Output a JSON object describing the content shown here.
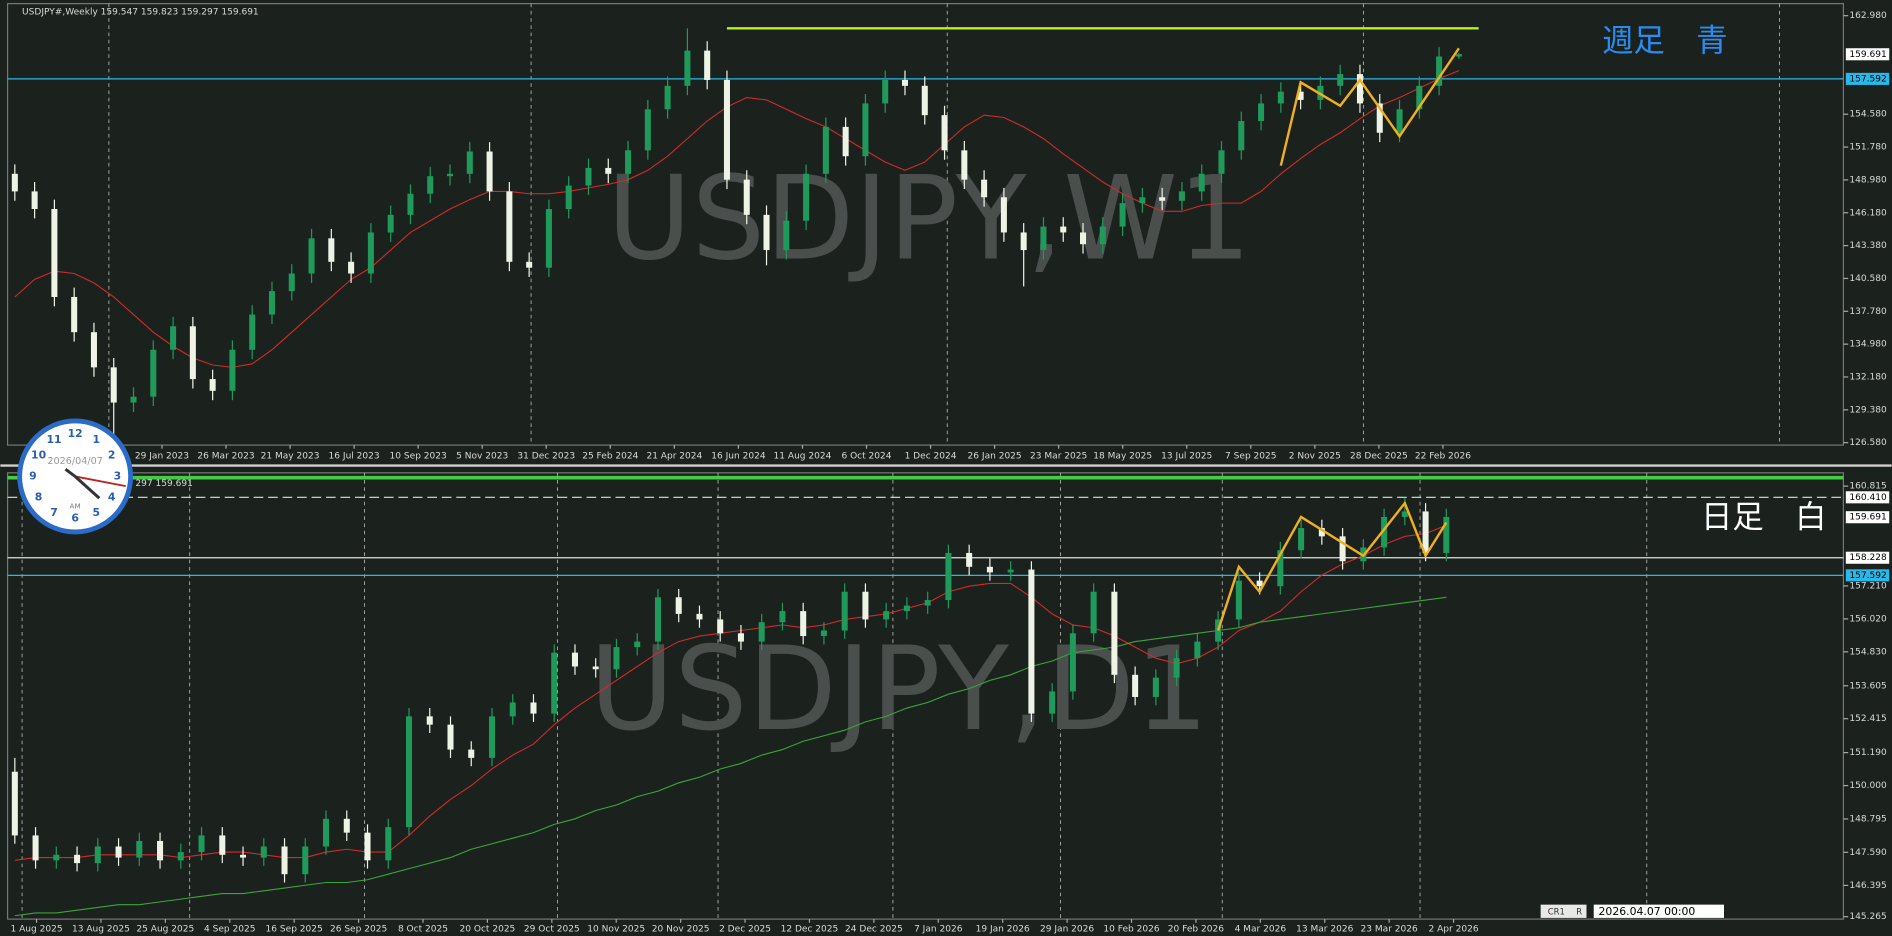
{
  "chart_data": [
    {
      "type": "candlestick",
      "title": "USDJPY#,Weekly  159.547 159.823 159.297 159.691",
      "watermark": "USDJPY,W1",
      "annotation": "週足　青",
      "annotation_color": "#2a8cf0",
      "up_color": "#1f9a5b",
      "down_color": "#eef3e6",
      "x_labels": [
        "29 Jan 2023",
        "26 Mar 2023",
        "21 May 2023",
        "16 Jul 2023",
        "10 Sep 2023",
        "5 Nov 2023",
        "31 Dec 2023",
        "25 Feb 2024",
        "21 Apr 2024",
        "16 Jun 2024",
        "11 Aug 2024",
        "6 Oct 2024",
        "1 Dec 2024",
        "26 Jan 2025",
        "23 Mar 2025",
        "18 May 2025",
        "13 Jul 2025",
        "7 Sep 2025",
        "2 Nov 2025",
        "28 Dec 2025",
        "22 Feb 2026"
      ],
      "open": [
        149.5,
        148.0,
        146.5,
        139.0,
        136.0,
        133.0,
        130.0,
        130.5,
        134.5,
        136.5,
        132.0,
        131.0,
        134.5,
        137.5,
        139.5,
        141.0,
        144.0,
        142.0,
        141.0,
        144.5,
        146.0,
        147.8,
        149.3,
        149.5,
        151.4,
        148.0,
        142.0,
        141.5,
        146.5,
        148.5,
        150.0,
        149.5,
        151.5,
        155.0,
        157.0,
        160.0,
        157.5,
        149.0,
        146.0,
        143.0,
        145.5,
        149.5,
        153.5,
        151.0,
        155.5,
        157.5,
        157.0,
        154.5,
        151.5,
        149.0,
        147.5,
        144.5,
        143.0,
        145.0,
        144.5,
        143.5,
        145.0,
        147.0,
        147.5,
        147.2,
        148.0,
        149.5,
        151.5,
        154.0,
        155.5,
        156.5,
        155.8,
        157.0,
        158.0,
        155.5,
        153.0,
        155.0,
        157.0,
        159.5
      ],
      "high": [
        150.3,
        148.8,
        147.3,
        139.8,
        136.8,
        133.8,
        131.3,
        135.3,
        137.3,
        137.3,
        132.8,
        135.3,
        138.3,
        140.3,
        141.8,
        144.8,
        144.8,
        142.8,
        145.3,
        146.8,
        148.6,
        150.1,
        150.3,
        152.2,
        152.2,
        148.8,
        142.8,
        147.3,
        149.3,
        150.8,
        150.8,
        152.3,
        155.8,
        157.8,
        161.9,
        160.8,
        158.3,
        149.8,
        146.8,
        146.3,
        150.3,
        154.3,
        154.3,
        156.3,
        158.3,
        158.3,
        157.8,
        155.3,
        152.3,
        149.8,
        148.3,
        145.3,
        145.8,
        145.8,
        145.3,
        145.8,
        147.8,
        148.3,
        148.3,
        148.8,
        150.3,
        152.3,
        154.8,
        156.3,
        157.3,
        157.3,
        157.8,
        158.8,
        158.8,
        156.3,
        155.8,
        157.8,
        160.3,
        159.8
      ],
      "low": [
        147.2,
        145.7,
        138.2,
        135.2,
        132.2,
        127.2,
        129.2,
        129.7,
        133.7,
        131.2,
        130.2,
        130.2,
        133.7,
        136.7,
        138.7,
        140.2,
        141.2,
        140.2,
        140.2,
        143.7,
        145.2,
        147.0,
        148.5,
        148.7,
        147.2,
        141.2,
        140.7,
        140.7,
        145.7,
        147.7,
        148.7,
        148.7,
        150.7,
        154.2,
        156.2,
        156.7,
        148.2,
        145.2,
        141.7,
        142.2,
        144.7,
        148.7,
        150.2,
        150.2,
        154.7,
        156.2,
        153.7,
        150.7,
        148.2,
        146.7,
        143.7,
        139.9,
        142.2,
        143.7,
        142.7,
        142.7,
        144.2,
        146.2,
        146.4,
        146.4,
        147.2,
        148.7,
        150.7,
        153.2,
        154.7,
        155.0,
        155.0,
        156.2,
        154.7,
        152.2,
        152.2,
        154.2,
        156.2,
        159.3
      ],
      "close": [
        148.0,
        146.5,
        139.0,
        136.0,
        133.0,
        130.0,
        130.5,
        134.5,
        136.5,
        132.0,
        131.0,
        134.5,
        137.5,
        139.5,
        141.0,
        144.0,
        142.0,
        141.0,
        144.5,
        146.0,
        147.8,
        149.3,
        149.5,
        151.4,
        148.0,
        142.0,
        141.5,
        146.5,
        148.5,
        150.0,
        149.5,
        151.5,
        155.0,
        157.0,
        160.0,
        157.5,
        149.0,
        146.0,
        143.0,
        145.5,
        149.5,
        153.5,
        151.0,
        155.5,
        157.5,
        157.0,
        154.5,
        151.5,
        149.0,
        147.5,
        144.5,
        143.0,
        145.0,
        144.5,
        143.5,
        145.0,
        147.0,
        147.5,
        147.2,
        148.0,
        149.5,
        151.5,
        154.0,
        155.5,
        156.5,
        155.8,
        157.0,
        158.0,
        155.5,
        153.0,
        155.0,
        157.0,
        159.5,
        159.7
      ],
      "lines": [
        {
          "color": "#d42a2a",
          "values": [
            139.0,
            140.5,
            141.2,
            141.0,
            140.2,
            139.0,
            137.5,
            136.0,
            134.8,
            133.8,
            133.2,
            133.0,
            133.3,
            134.5,
            136.0,
            137.5,
            139.0,
            140.5,
            141.5,
            143.0,
            144.5,
            145.5,
            146.5,
            147.3,
            148.0,
            148.0,
            147.8,
            147.8,
            148.0,
            148.3,
            148.6,
            149.0,
            149.8,
            151.0,
            152.5,
            154.0,
            155.2,
            156.0,
            155.8,
            155.0,
            154.2,
            153.5,
            152.5,
            151.5,
            150.5,
            149.8,
            150.5,
            152.0,
            153.5,
            154.5,
            154.3,
            153.5,
            152.5,
            151.2,
            150.0,
            148.8,
            147.8,
            147.0,
            146.3,
            146.3,
            146.8,
            147.0,
            147.0,
            148.0,
            149.5,
            150.8,
            152.0,
            153.0,
            154.2,
            155.3,
            156.0,
            156.8,
            157.6,
            158.3
          ]
        }
      ],
      "zigzag": {
        "color": "#f0b020",
        "index": [
          64,
          65,
          67,
          68,
          70,
          73
        ],
        "values": [
          150.2,
          157.3,
          155.3,
          157.5,
          152.7,
          160.2
        ]
      },
      "hlines": [
        {
          "value": 161.9,
          "color": "#b8f020",
          "from": 36
        },
        {
          "value": 157.592,
          "color": "#2ab8e8"
        }
      ],
      "price_labels": [
        {
          "value": 159.691,
          "bg": "#ffffff",
          "fg": "#000000"
        },
        {
          "value": 157.592,
          "bg": "#2ab8e8",
          "fg": "#000000"
        }
      ],
      "ylim": [
        126.58,
        162.98
      ],
      "yticks": [
        {
          "value": 162.98,
          "label": "162.980"
        },
        {
          "value": 154.58,
          "label": "154.580"
        },
        {
          "value": 151.78,
          "label": "151.780"
        },
        {
          "value": 148.98,
          "label": "148.980"
        },
        {
          "value": 146.18,
          "label": "146.180"
        },
        {
          "value": 143.38,
          "label": "143.380"
        },
        {
          "value": 140.58,
          "label": "140.580"
        },
        {
          "value": 137.78,
          "label": "137.780"
        },
        {
          "value": 134.98,
          "label": "134.980"
        },
        {
          "value": 132.18,
          "label": "132.180"
        },
        {
          "value": 129.38,
          "label": "129.380"
        },
        {
          "value": 126.58,
          "label": "126.580"
        }
      ]
    },
    {
      "type": "candlestick",
      "title": "297 159.691",
      "watermark": "USDJPY,D1",
      "annotation": "日足　白",
      "annotation_color": "#ffffff",
      "up_color": "#1f9a5b",
      "down_color": "#eef3e6",
      "x_labels": [
        "1 Aug 2025",
        "13 Aug 2025",
        "25 Aug 2025",
        "4 Sep 2025",
        "16 Sep 2025",
        "26 Sep 2025",
        "8 Oct 2025",
        "20 Oct 2025",
        "29 Oct 2025",
        "10 Nov 2025",
        "20 Nov 2025",
        "2 Dec 2025",
        "12 Dec 2025",
        "24 Dec 2025",
        "7 Jan 2026",
        "19 Jan 2026",
        "29 Jan 2026",
        "10 Feb 2026",
        "20 Feb 2026",
        "4 Mar 2026",
        "13 Mar 2026",
        "23 Mar 2026",
        "2 Apr 2026"
      ],
      "open": [
        150.5,
        148.2,
        147.3,
        147.5,
        147.2,
        147.8,
        147.4,
        148.0,
        147.3,
        147.6,
        148.2,
        147.5,
        147.4,
        147.8,
        146.8,
        147.8,
        148.8,
        148.3,
        147.3,
        148.5,
        152.5,
        152.2,
        151.3,
        151.0,
        152.5,
        153.0,
        152.6,
        154.8,
        154.3,
        154.2,
        155.0,
        155.2,
        156.8,
        156.2,
        156.0,
        155.5,
        155.2,
        155.9,
        156.3,
        155.4,
        155.6,
        157.0,
        156.0,
        156.3,
        156.5,
        156.7,
        158.4,
        157.9,
        157.7,
        157.8,
        152.6,
        153.4,
        155.5,
        157.0,
        154.0,
        153.2,
        153.9,
        154.6,
        155.2,
        156.0,
        157.4,
        157.2,
        158.5,
        159.3,
        159.0,
        158.1,
        158.6,
        159.7,
        159.9,
        158.4
      ],
      "high": [
        151.0,
        148.5,
        147.8,
        147.8,
        148.1,
        148.1,
        148.3,
        148.3,
        147.9,
        148.5,
        148.5,
        147.8,
        148.1,
        148.1,
        148.1,
        149.1,
        149.1,
        148.6,
        148.8,
        152.8,
        152.8,
        152.5,
        151.6,
        152.8,
        153.3,
        153.3,
        155.1,
        155.1,
        154.6,
        155.3,
        155.5,
        157.1,
        157.1,
        156.5,
        156.3,
        155.8,
        156.2,
        156.6,
        156.6,
        155.9,
        157.3,
        157.3,
        156.6,
        156.8,
        157.0,
        158.7,
        158.7,
        158.2,
        158.1,
        158.1,
        153.7,
        155.8,
        157.3,
        157.3,
        154.3,
        154.2,
        154.9,
        155.5,
        156.3,
        157.7,
        157.7,
        158.8,
        159.6,
        159.6,
        159.3,
        158.9,
        160.0,
        160.4,
        160.2,
        160.0
      ],
      "low": [
        147.9,
        147.0,
        147.0,
        146.9,
        146.9,
        147.1,
        147.1,
        147.0,
        147.0,
        147.3,
        147.2,
        147.1,
        147.1,
        146.5,
        146.5,
        147.5,
        148.0,
        147.0,
        147.0,
        148.2,
        151.9,
        151.0,
        150.7,
        150.7,
        152.2,
        152.3,
        152.3,
        154.0,
        153.9,
        153.9,
        154.7,
        154.9,
        155.9,
        155.7,
        155.2,
        154.9,
        154.9,
        155.6,
        155.1,
        155.1,
        155.3,
        155.7,
        155.7,
        156.0,
        156.2,
        156.4,
        157.6,
        157.4,
        157.4,
        152.3,
        152.3,
        153.1,
        155.2,
        153.7,
        152.9,
        152.9,
        153.6,
        154.3,
        154.9,
        155.7,
        156.9,
        156.9,
        158.2,
        158.7,
        157.8,
        157.8,
        158.3,
        159.4,
        158.1,
        158.1
      ],
      "close": [
        148.2,
        147.3,
        147.5,
        147.2,
        147.8,
        147.4,
        148.0,
        147.3,
        147.6,
        148.2,
        147.5,
        147.4,
        147.8,
        146.8,
        147.8,
        148.8,
        148.3,
        147.3,
        148.5,
        152.5,
        152.2,
        151.3,
        151.0,
        152.5,
        153.0,
        152.6,
        154.8,
        154.3,
        154.2,
        155.0,
        155.2,
        156.8,
        156.2,
        156.0,
        155.5,
        155.2,
        155.9,
        156.3,
        155.4,
        155.6,
        157.0,
        156.0,
        156.3,
        156.5,
        156.7,
        158.4,
        157.9,
        157.7,
        157.8,
        152.6,
        153.4,
        155.5,
        157.0,
        154.0,
        153.2,
        153.9,
        154.6,
        155.2,
        156.0,
        157.4,
        157.2,
        158.5,
        159.3,
        159.0,
        158.1,
        158.6,
        159.7,
        159.9,
        158.4,
        159.7
      ],
      "lines": [
        {
          "color": "#d42a2a",
          "values": [
            147.3,
            147.4,
            147.4,
            147.4,
            147.5,
            147.5,
            147.5,
            147.5,
            147.4,
            147.5,
            147.6,
            147.6,
            147.5,
            147.4,
            147.4,
            147.6,
            147.7,
            147.6,
            147.6,
            148.2,
            148.9,
            149.5,
            150.0,
            150.6,
            151.1,
            151.5,
            152.2,
            152.8,
            153.3,
            153.8,
            154.3,
            154.8,
            155.2,
            155.4,
            155.5,
            155.6,
            155.7,
            155.8,
            155.7,
            155.8,
            156.0,
            156.1,
            156.2,
            156.4,
            156.6,
            157.0,
            157.2,
            157.3,
            157.3,
            156.8,
            156.2,
            155.8,
            155.7,
            155.4,
            155.0,
            154.6,
            154.4,
            154.6,
            155.0,
            155.6,
            155.9,
            156.3,
            157.0,
            157.6,
            158.0,
            158.3,
            158.7,
            159.0,
            159.1,
            159.4
          ]
        },
        {
          "color": "#3aa63a",
          "values": [
            145.3,
            145.4,
            145.4,
            145.5,
            145.6,
            145.7,
            145.7,
            145.8,
            145.9,
            146.0,
            146.1,
            146.1,
            146.2,
            146.3,
            146.4,
            146.5,
            146.5,
            146.6,
            146.8,
            147.0,
            147.2,
            147.4,
            147.7,
            147.9,
            148.1,
            148.3,
            148.6,
            148.8,
            149.1,
            149.3,
            149.6,
            149.8,
            150.1,
            150.3,
            150.6,
            150.8,
            151.1,
            151.3,
            151.6,
            151.8,
            152.0,
            152.3,
            152.5,
            152.8,
            153.0,
            153.3,
            153.5,
            153.8,
            154.0,
            154.3,
            154.5,
            154.8,
            154.9,
            155.0,
            155.2,
            155.3,
            155.4,
            155.5,
            155.6,
            155.7,
            155.9,
            156.0,
            156.1,
            156.2,
            156.3,
            156.4,
            156.5,
            156.6,
            156.7,
            156.8
          ]
        }
      ],
      "zigzag": {
        "color": "#f0b020",
        "index": [
          58,
          59,
          60,
          62,
          65,
          67,
          68,
          69
        ],
        "values": [
          155.6,
          157.9,
          157.0,
          159.7,
          158.3,
          160.2,
          158.3,
          159.5
        ]
      },
      "hlines": [
        {
          "value": 161.12,
          "color": "#44cc44",
          "width": 3
        },
        {
          "value": 160.41,
          "color": "#e0e0e0",
          "dash": true
        },
        {
          "value": 158.228,
          "color": "#e0e0e0"
        },
        {
          "value": 157.592,
          "color": "#2ab8e8"
        }
      ],
      "price_labels": [
        {
          "value": 160.41,
          "label": "160.410",
          "bg": "#ffffff",
          "fg": "#000000"
        },
        {
          "value": 159.691,
          "bg": "#ffffff",
          "fg": "#000000"
        },
        {
          "value": 158.228,
          "bg": "#ffffff",
          "fg": "#000000"
        },
        {
          "value": 157.592,
          "bg": "#2ab8e8",
          "fg": "#000000"
        }
      ],
      "ylim": [
        145.265,
        160.815
      ],
      "yticks": [
        {
          "value": 160.815,
          "label": "160.815"
        },
        {
          "value": 157.21,
          "label": "157.210"
        },
        {
          "value": 156.02,
          "label": "156.020"
        },
        {
          "value": 154.83,
          "label": "154.830"
        },
        {
          "value": 153.605,
          "label": "153.605"
        },
        {
          "value": 152.415,
          "label": "152.415"
        },
        {
          "value": 151.19,
          "label": "151.190"
        },
        {
          "value": 150,
          "label": "150.000"
        },
        {
          "value": 148.795,
          "label": "148.795"
        },
        {
          "value": 147.59,
          "label": "147.590"
        },
        {
          "value": 146.395,
          "label": "146.395"
        },
        {
          "value": 145.265,
          "label": "145.265"
        }
      ]
    }
  ],
  "clock": {
    "date": "2026/04/07",
    "period": "AM",
    "numbers": [
      "12",
      "1",
      "2",
      "3",
      "4",
      "5",
      "6",
      "7",
      "8",
      "9",
      "10",
      "11"
    ]
  },
  "status": {
    "profile": "CR1",
    "mode": "R",
    "time": "2026.04.07 00:00"
  }
}
